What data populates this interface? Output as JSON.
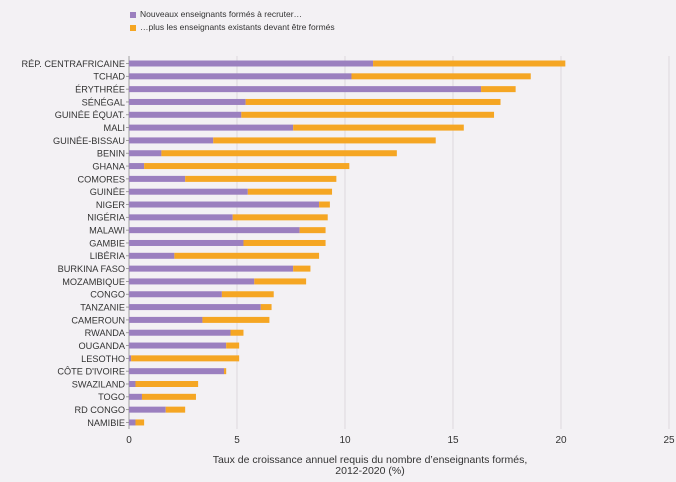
{
  "chart_data": {
    "type": "bar",
    "orientation": "horizontal",
    "stacked": true,
    "xlabel": "Taux de croissance annuel requis du nombre d’enseignants formés, 2012-2020 (%)",
    "xlim": [
      0,
      25
    ],
    "xticks": [
      0,
      5,
      10,
      15,
      20,
      25
    ],
    "grid": true,
    "legend_position": "top-left",
    "categories": [
      "RÉP. CENTRAFRICAINE",
      "TCHAD",
      "ÉRYTHRÉE",
      "SÉNÉGAL",
      "GUINÉE ÉQUAT.",
      "MALI",
      "GUINÉE-BISSAU",
      "BENIN",
      "GHANA",
      "COMORES",
      "GUINÉE",
      "NIGER",
      "NIGÉRIA",
      "MALAWI",
      "GAMBIE",
      "LIBÉRIA",
      "BURKINA FASO",
      "MOZAMBIQUE",
      "CONGO",
      "TANZANIE",
      "CAMEROUN",
      "RWANDA",
      "OUGANDA",
      "LESOTHO",
      "CÔTE D'IVOIRE",
      "SWAZILAND",
      "TOGO",
      "RD CONGO",
      "NAMIBIE"
    ],
    "series": [
      {
        "name": "Nouveaux enseignants formés à recruter…",
        "color": "#9b7fbf",
        "values": [
          11.3,
          10.3,
          16.3,
          5.4,
          5.2,
          7.6,
          3.9,
          1.5,
          0.7,
          2.6,
          5.5,
          8.8,
          4.8,
          7.9,
          5.3,
          2.1,
          7.6,
          5.8,
          4.3,
          6.1,
          3.4,
          4.7,
          4.5,
          0.1,
          4.4,
          0.3,
          0.6,
          1.7,
          0.3
        ]
      },
      {
        "name": "…plus les enseignants existants devant être formés",
        "color": "#f5a623",
        "values": [
          8.9,
          8.3,
          1.6,
          11.8,
          11.7,
          7.9,
          10.3,
          10.9,
          9.5,
          7.0,
          3.9,
          0.5,
          4.4,
          1.2,
          3.8,
          6.7,
          0.8,
          2.4,
          2.4,
          0.5,
          3.1,
          0.6,
          0.6,
          5.0,
          0.1,
          2.9,
          2.5,
          0.9,
          0.4
        ]
      }
    ]
  }
}
